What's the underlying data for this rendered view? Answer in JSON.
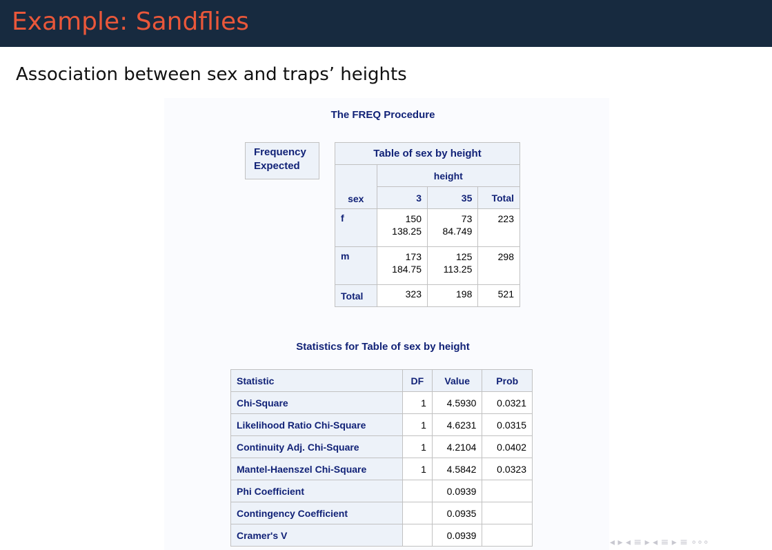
{
  "header": {
    "title": "Example: Sandflies"
  },
  "subtitle": "Association between sex and traps’ heights",
  "output": {
    "procedure_title": "The FREQ Procedure",
    "legend": [
      "Frequency",
      "Expected"
    ],
    "crosstab": {
      "title": "Table of sex by height",
      "col_group": "height",
      "row_label": "sex",
      "columns": [
        "3",
        "35",
        "Total"
      ],
      "rows": [
        {
          "label": "f",
          "cells": [
            [
              "150",
              "138.25"
            ],
            [
              "73",
              "84.749"
            ],
            [
              "223",
              ""
            ]
          ]
        },
        {
          "label": "m",
          "cells": [
            [
              "173",
              "184.75"
            ],
            [
              "125",
              "113.25"
            ],
            [
              "298",
              ""
            ]
          ]
        }
      ],
      "total": {
        "label": "Total",
        "cells": [
          "323",
          "198",
          "521"
        ]
      }
    },
    "stats": {
      "title": "Statistics for Table of sex by height",
      "headers": [
        "Statistic",
        "DF",
        "Value",
        "Prob"
      ],
      "rows": [
        {
          "statistic": "Chi-Square",
          "df": "1",
          "value": "4.5930",
          "prob": "0.0321"
        },
        {
          "statistic": "Likelihood Ratio Chi-Square",
          "df": "1",
          "value": "4.6231",
          "prob": "0.0315"
        },
        {
          "statistic": "Continuity Adj. Chi-Square",
          "df": "1",
          "value": "4.2104",
          "prob": "0.0402"
        },
        {
          "statistic": "Mantel-Haenszel Chi-Square",
          "df": "1",
          "value": "4.5842",
          "prob": "0.0323"
        },
        {
          "statistic": "Phi Coefficient",
          "df": "",
          "value": "0.0939",
          "prob": ""
        },
        {
          "statistic": "Contingency Coefficient",
          "df": "",
          "value": "0.0935",
          "prob": ""
        },
        {
          "statistic": "Cramer's V",
          "df": "",
          "value": "0.0939",
          "prob": ""
        }
      ]
    }
  },
  "nav": {
    "icons": "◂ ▸ ◂ ≡ ▸ ◂ ≡ ▸   ≡   ∘∘∘",
    "icon_names": "beamer-navigation-icons"
  }
}
